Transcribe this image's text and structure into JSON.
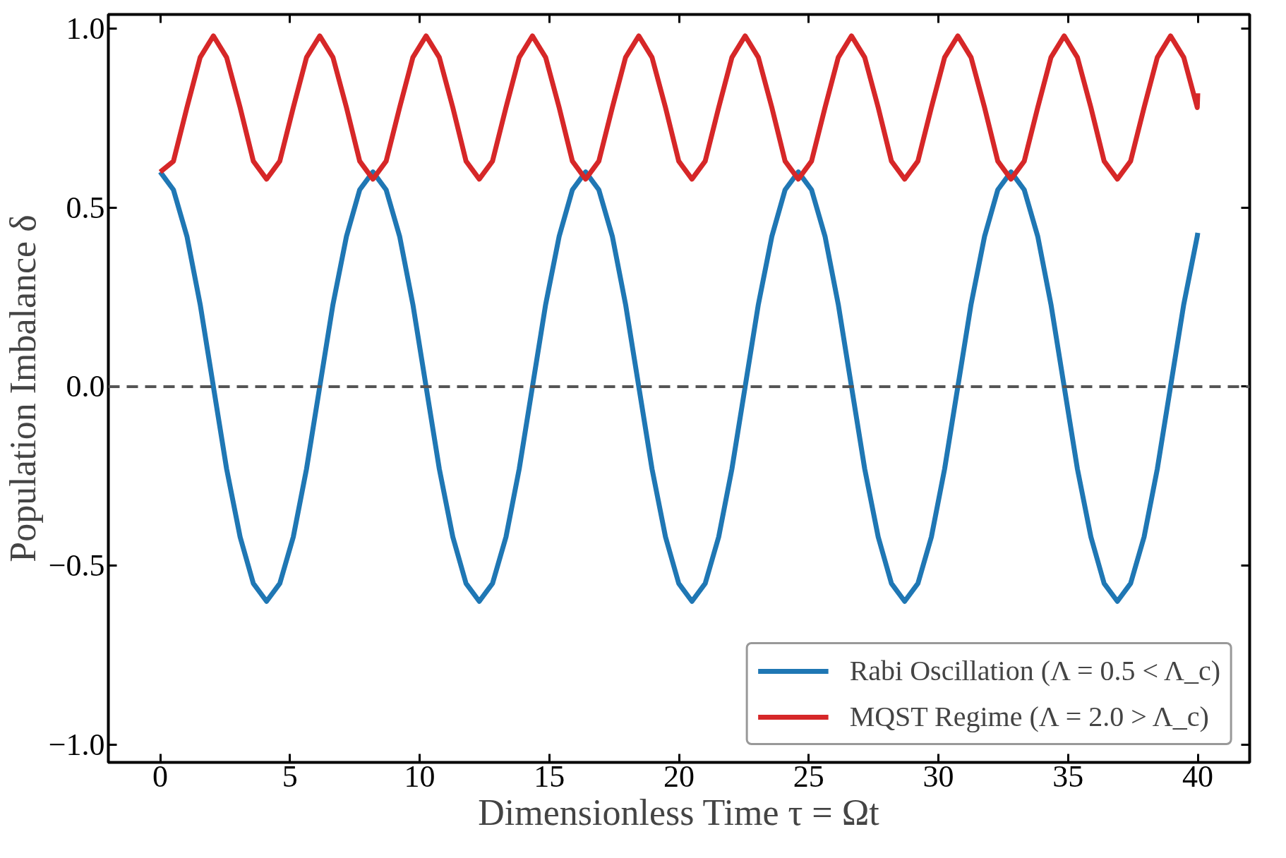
{
  "chart_data": {
    "type": "line",
    "xlabel": "Dimensionless Time τ = Ωt",
    "ylabel": "Population Imbalance δ",
    "x": [
      0,
      0.51,
      1.03,
      1.54,
      2.05,
      2.56,
      3.08,
      3.59,
      4.1,
      4.61,
      5.13,
      5.64,
      6.15,
      6.66,
      7.18,
      7.69,
      8.2,
      8.71,
      9.23,
      9.74,
      10.25,
      10.76,
      11.28,
      11.79,
      12.3,
      12.81,
      13.33,
      13.84,
      14.35,
      14.86,
      15.38,
      15.89,
      16.4,
      16.91,
      17.43,
      17.94,
      18.45,
      18.96,
      19.48,
      19.99,
      20.5,
      21.01,
      21.53,
      22.04,
      22.55,
      23.06,
      23.58,
      24.09,
      24.6,
      25.11,
      25.63,
      26.14,
      26.65,
      27.16,
      27.68,
      28.19,
      28.7,
      29.21,
      29.73,
      30.24,
      30.75,
      31.26,
      31.78,
      32.29,
      32.8,
      33.31,
      33.83,
      34.34,
      34.85,
      35.36,
      35.88,
      36.39,
      36.9,
      37.41,
      37.93,
      38.44,
      38.95,
      39.46,
      39.98,
      40
    ],
    "series": [
      {
        "name": "Rabi Oscillation (Λ = 0.5 < Λ_c)",
        "color": "#1f77b4",
        "values": [
          0.6,
          0.55,
          0.42,
          0.23,
          0,
          -0.23,
          -0.42,
          -0.55,
          -0.6,
          -0.55,
          -0.42,
          -0.23,
          0,
          0.23,
          0.42,
          0.55,
          0.6,
          0.55,
          0.42,
          0.23,
          0,
          -0.23,
          -0.42,
          -0.55,
          -0.6,
          -0.55,
          -0.42,
          -0.23,
          0,
          0.23,
          0.42,
          0.55,
          0.6,
          0.55,
          0.42,
          0.23,
          0,
          -0.23,
          -0.42,
          -0.55,
          -0.6,
          -0.55,
          -0.42,
          -0.23,
          0,
          0.23,
          0.42,
          0.55,
          0.6,
          0.55,
          0.42,
          0.23,
          0,
          -0.23,
          -0.42,
          -0.55,
          -0.6,
          -0.55,
          -0.42,
          -0.23,
          0,
          0.23,
          0.42,
          0.55,
          0.6,
          0.55,
          0.42,
          0.23,
          0,
          -0.23,
          -0.42,
          -0.55,
          -0.6,
          -0.55,
          -0.42,
          -0.23,
          0,
          0.23,
          0.42,
          0.43
        ]
      },
      {
        "name": "MQST Regime (Λ = 2.0 > Λ_c)",
        "color": "#d62728",
        "values": [
          0.6,
          0.63,
          0.78,
          0.92,
          0.98,
          0.92,
          0.78,
          0.63,
          0.58,
          0.63,
          0.78,
          0.92,
          0.98,
          0.92,
          0.78,
          0.63,
          0.58,
          0.63,
          0.78,
          0.92,
          0.98,
          0.92,
          0.78,
          0.63,
          0.58,
          0.63,
          0.78,
          0.92,
          0.98,
          0.92,
          0.78,
          0.63,
          0.58,
          0.63,
          0.78,
          0.92,
          0.98,
          0.92,
          0.78,
          0.63,
          0.58,
          0.63,
          0.78,
          0.92,
          0.98,
          0.92,
          0.78,
          0.63,
          0.58,
          0.63,
          0.78,
          0.92,
          0.98,
          0.92,
          0.78,
          0.63,
          0.58,
          0.63,
          0.78,
          0.92,
          0.98,
          0.92,
          0.78,
          0.63,
          0.58,
          0.63,
          0.78,
          0.92,
          0.98,
          0.92,
          0.78,
          0.63,
          0.58,
          0.63,
          0.78,
          0.92,
          0.98,
          0.92,
          0.78,
          0.82
        ]
      }
    ],
    "xlim": [
      -2,
      42
    ],
    "ylim": [
      -1.05,
      1.04
    ],
    "xticks": [
      0,
      5,
      10,
      15,
      20,
      25,
      30,
      35,
      40
    ],
    "yticks": [
      {
        "value": -1.0,
        "label": "−1.0"
      },
      {
        "value": -0.5,
        "label": "−0.5"
      },
      {
        "value": 0.0,
        "label": "0.0"
      },
      {
        "value": 0.5,
        "label": "0.5"
      },
      {
        "value": 1.0,
        "label": "1.0"
      }
    ],
    "ref_lines": [
      {
        "axis": "y",
        "value": 0,
        "color": "#555555",
        "line_style": "dashed"
      }
    ],
    "legend": "bottom right",
    "grid": false,
    "line_style": "solid",
    "marker": "none"
  }
}
